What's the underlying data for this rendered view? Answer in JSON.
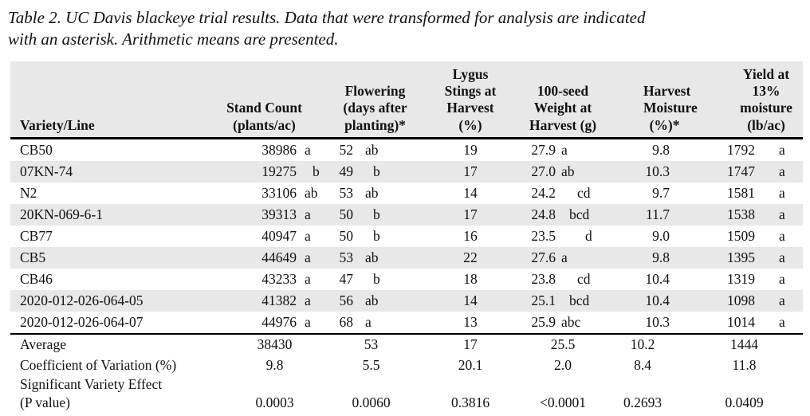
{
  "title": "Table 2. UC Davis blackeye trial results. Data that were transformed for analysis are indicated\nwith an asterisk. Arithmetic means are presented.",
  "table": {
    "headers": {
      "variety": "Variety/Line",
      "stand": "Stand Count\n(plants/ac)",
      "flowering": "Flowering\n(days after\nplanting)*",
      "lygus": "Lygus\nStings at\nHarvest\n(%)",
      "seed": "100-seed\nWeight at\nHarvest (g)",
      "moisture": "Harvest\nMoisture\n(%)*",
      "yield": "Yield at\n13%\nmoisture\n(lb/ac)"
    },
    "rows": [
      {
        "variety": "CB50",
        "stand": {
          "v": "38986",
          "g": "a"
        },
        "flowering": {
          "v": "52",
          "g": "ab"
        },
        "lygus": "19",
        "seed": {
          "v": "27.9",
          "g": "a"
        },
        "moisture": "9.8",
        "yield": {
          "v": "1792",
          "g": "a"
        }
      },
      {
        "variety": "07KN-74",
        "stand": {
          "v": "19275",
          "g": "b"
        },
        "flowering": {
          "v": "49",
          "g": "b"
        },
        "lygus": "17",
        "seed": {
          "v": "27.0",
          "g": "ab"
        },
        "moisture": "10.3",
        "yield": {
          "v": "1747",
          "g": "a"
        }
      },
      {
        "variety": "N2",
        "stand": {
          "v": "33106",
          "g": "ab"
        },
        "flowering": {
          "v": "53",
          "g": "ab"
        },
        "lygus": "14",
        "seed": {
          "v": "24.2",
          "g": "cd"
        },
        "moisture": "9.7",
        "yield": {
          "v": "1581",
          "g": "a"
        }
      },
      {
        "variety": "20KN-069-6-1",
        "stand": {
          "v": "39313",
          "g": "a"
        },
        "flowering": {
          "v": "50",
          "g": "b"
        },
        "lygus": "17",
        "seed": {
          "v": "24.8",
          "g": "bcd"
        },
        "moisture": "11.7",
        "yield": {
          "v": "1538",
          "g": "a"
        }
      },
      {
        "variety": "CB77",
        "stand": {
          "v": "40947",
          "g": "a"
        },
        "flowering": {
          "v": "50",
          "g": "b"
        },
        "lygus": "16",
        "seed": {
          "v": "23.5",
          "g": "d"
        },
        "moisture": "9.0",
        "yield": {
          "v": "1509",
          "g": "a"
        }
      },
      {
        "variety": "CB5",
        "stand": {
          "v": "44649",
          "g": "a"
        },
        "flowering": {
          "v": "53",
          "g": "ab"
        },
        "lygus": "22",
        "seed": {
          "v": "27.6",
          "g": "a"
        },
        "moisture": "9.8",
        "yield": {
          "v": "1395",
          "g": "a"
        }
      },
      {
        "variety": "CB46",
        "stand": {
          "v": "43233",
          "g": "a"
        },
        "flowering": {
          "v": "47",
          "g": "b"
        },
        "lygus": "18",
        "seed": {
          "v": "23.8",
          "g": "cd"
        },
        "moisture": "10.4",
        "yield": {
          "v": "1319",
          "g": "a"
        }
      },
      {
        "variety": "2020-012-026-064-05",
        "stand": {
          "v": "41382",
          "g": "a"
        },
        "flowering": {
          "v": "56",
          "g": "ab"
        },
        "lygus": "14",
        "seed": {
          "v": "25.1",
          "g": "bcd"
        },
        "moisture": "10.4",
        "yield": {
          "v": "1098",
          "g": "a"
        }
      },
      {
        "variety": "2020-012-026-064-07",
        "stand": {
          "v": "44976",
          "g": "a"
        },
        "flowering": {
          "v": "68",
          "g": "a"
        },
        "lygus": "13",
        "seed": {
          "v": "25.9",
          "g": "abc"
        },
        "moisture": "10.3",
        "yield": {
          "v": "1014",
          "g": "a"
        }
      }
    ],
    "summary_rows": [
      {
        "label": "Average",
        "stand": "38430",
        "flowering": "53",
        "lygus": "17",
        "seed": "25.5",
        "moisture": "10.2",
        "yield": "1444"
      },
      {
        "label": "Coefficient of Variation (%)",
        "stand": "9.8",
        "flowering": "5.5",
        "lygus": "20.1",
        "seed": "2.0",
        "moisture": "8.4",
        "yield": "11.8"
      },
      {
        "label": "Significant Variety Effect",
        "stand": "",
        "flowering": "",
        "lygus": "",
        "seed": "",
        "moisture": "",
        "yield": ""
      },
      {
        "label": "(P value)",
        "stand": "0.0003",
        "flowering": "0.0060",
        "lygus": "0.3816",
        "seed": "<0.0001",
        "moisture": "0.2693",
        "yield": "0.0409"
      }
    ]
  }
}
